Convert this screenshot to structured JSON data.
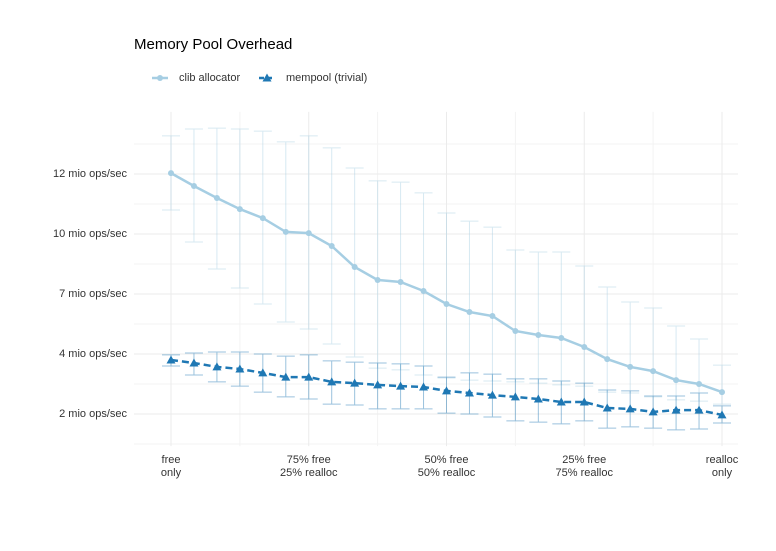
{
  "chart_data": {
    "type": "line",
    "title": "Memory Pool Overhead",
    "categories": [
      "free\nonly",
      null,
      null,
      null,
      null,
      null,
      "75% free\n25% realloc",
      null,
      null,
      null,
      null,
      null,
      "50% free\n50% realloc",
      null,
      null,
      null,
      null,
      null,
      "25% free\n75% realloc",
      null,
      null,
      null,
      null,
      null,
      "realloc\nonly"
    ],
    "ylim": [
      0.93,
      14.07
    ],
    "yticks": [
      {
        "value": 2,
        "label": "2 mio ops/sec"
      },
      {
        "value": 4,
        "label": "4 mio ops/sec"
      },
      {
        "value": 7,
        "label": "7 mio ops/sec"
      },
      {
        "value": 10,
        "label": "10 mio ops/sec"
      },
      {
        "value": 12,
        "label": "12 mio ops/sec"
      }
    ],
    "grid": true,
    "legend": "top-left",
    "series": [
      {
        "name": "clib allocator",
        "color": "#a6cee3",
        "marker": "circle",
        "dash": false,
        "values": [
          12.03,
          11.6,
          11.2,
          10.83,
          10.53,
          10.07,
          10.03,
          9.4,
          8.35,
          7.7,
          7.6,
          7.15,
          6.5,
          6.1,
          5.9,
          5.15,
          4.95,
          4.8,
          4.35,
          3.83,
          3.57,
          3.43,
          3.13,
          3.0,
          2.73
        ],
        "lower": [
          10.8,
          9.6,
          8.25,
          7.3,
          6.5,
          5.6,
          5.25,
          4.5,
          3.9,
          3.53,
          3.47,
          3.3,
          3.2,
          3.13,
          3.1,
          3.07,
          3.03,
          2.97,
          2.93,
          2.73,
          2.7,
          2.57,
          2.47,
          2.43,
          2.33
        ],
        "upper": [
          13.27,
          13.5,
          13.53,
          13.5,
          13.43,
          13.07,
          13.27,
          12.87,
          12.2,
          11.77,
          11.73,
          11.37,
          10.7,
          10.43,
          10.23,
          9.2,
          9.1,
          9.1,
          8.4,
          7.35,
          6.6,
          6.3,
          5.4,
          4.75,
          3.63
        ]
      },
      {
        "name": "mempool (trivial)",
        "color": "#1f78b4",
        "marker": "triangle",
        "dash": true,
        "values": [
          3.8,
          3.7,
          3.57,
          3.5,
          3.37,
          3.23,
          3.23,
          3.07,
          3.03,
          2.97,
          2.93,
          2.9,
          2.77,
          2.7,
          2.63,
          2.57,
          2.5,
          2.4,
          2.4,
          2.2,
          2.17,
          2.07,
          2.13,
          2.13,
          1.97
        ],
        "lower": [
          3.6,
          3.3,
          3.07,
          2.93,
          2.73,
          2.57,
          2.5,
          2.33,
          2.3,
          2.17,
          2.17,
          2.17,
          2.03,
          2.0,
          1.9,
          1.77,
          1.73,
          1.67,
          1.77,
          1.53,
          1.57,
          1.53,
          1.47,
          1.5,
          1.7
        ],
        "upper": [
          3.97,
          4.05,
          4.1,
          4.1,
          4.0,
          3.93,
          3.97,
          3.77,
          3.73,
          3.7,
          3.67,
          3.6,
          3.23,
          3.37,
          3.33,
          3.17,
          3.17,
          3.1,
          3.03,
          2.8,
          2.77,
          2.6,
          2.6,
          2.7,
          2.27
        ]
      }
    ]
  }
}
